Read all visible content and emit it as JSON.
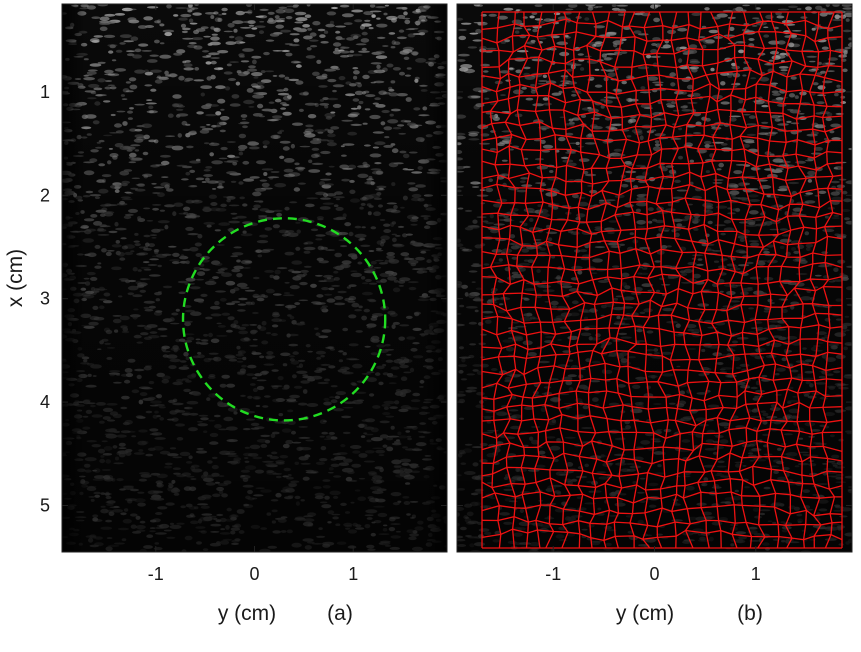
{
  "figure": {
    "panels": [
      {
        "id": "a",
        "panel_label": "(a)",
        "xlabel": "y (cm)",
        "ylabel": "x (cm)",
        "x_ticks": [
          "-1",
          "0",
          "1"
        ],
        "y_ticks": [
          "1",
          "2",
          "3",
          "4",
          "5"
        ],
        "overlay": "dashed-circle",
        "overlay_color": "#22dd22"
      },
      {
        "id": "b",
        "panel_label": "(b)",
        "xlabel": "y (cm)",
        "ylabel": "",
        "x_ticks": [
          "-1",
          "0",
          "1"
        ],
        "y_ticks": [],
        "overlay": "mesh-grid",
        "overlay_color": "#ee1111"
      }
    ],
    "axes": {
      "y_range_cm": [
        -1.95,
        1.95
      ],
      "x_range_cm": [
        0.15,
        5.45
      ],
      "y_tick_values": [
        -1,
        0,
        1
      ],
      "x_tick_values": [
        1,
        2,
        3,
        4,
        5
      ]
    },
    "inclusion": {
      "center_y_cm": 0.3,
      "center_x_cm": 3.2,
      "radius_cm": 1.0
    },
    "colors": {
      "background": "#ffffff",
      "image_base": "#0a0a0a",
      "speckle": "#d8d8d8"
    }
  }
}
